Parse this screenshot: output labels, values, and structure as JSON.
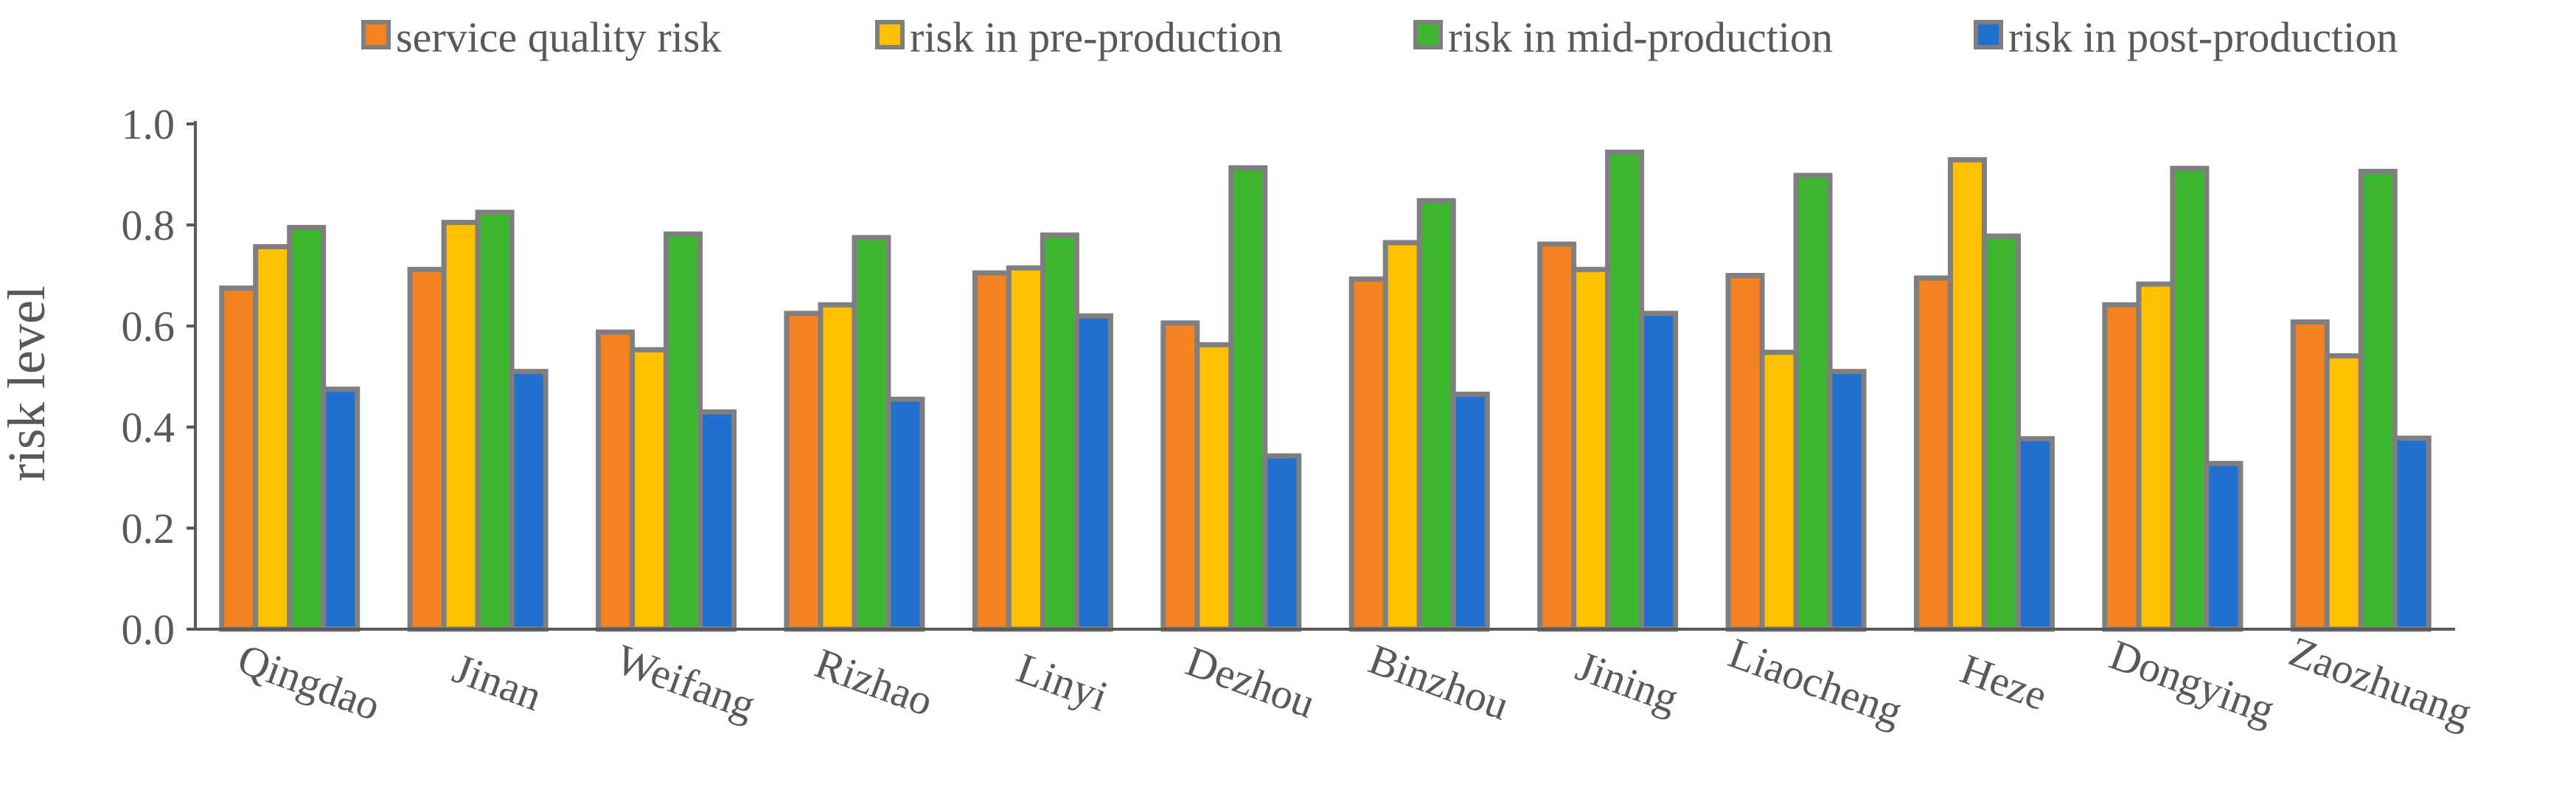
{
  "chart_data": {
    "type": "bar",
    "title": "",
    "xlabel": "",
    "ylabel": "risk level",
    "ylim": [
      0,
      1.0
    ],
    "yticks": [
      "0.0",
      "0.2",
      "0.4",
      "0.6",
      "0.8",
      "1.0"
    ],
    "ytick_values": [
      0,
      0.2,
      0.4,
      0.6,
      0.8,
      1.0
    ],
    "grid": false,
    "legend_position": "top",
    "categories": [
      "Qingdao",
      "Jinan",
      "Weifang",
      "Rizhao",
      "Linyi",
      "Dezhou",
      "Binzhou",
      "Jining",
      "Liaocheng",
      "Heze",
      "Dongying",
      "Zaozhuang"
    ],
    "series": [
      {
        "name": "service quality risk",
        "color": "#f58220",
        "values": [
          0.675,
          0.712,
          0.588,
          0.625,
          0.705,
          0.606,
          0.693,
          0.762,
          0.7,
          0.695,
          0.642,
          0.608
        ]
      },
      {
        "name": "risk in pre-production",
        "color": "#ffc000",
        "values": [
          0.757,
          0.805,
          0.553,
          0.642,
          0.715,
          0.563,
          0.765,
          0.712,
          0.548,
          0.929,
          0.683,
          0.541
        ]
      },
      {
        "name": "risk in mid-production",
        "color": "#3cb72f",
        "values": [
          0.795,
          0.825,
          0.782,
          0.775,
          0.78,
          0.913,
          0.848,
          0.944,
          0.898,
          0.778,
          0.912,
          0.906
        ]
      },
      {
        "name": "risk in post-production",
        "color": "#2170d0",
        "values": [
          0.475,
          0.51,
          0.43,
          0.455,
          0.62,
          0.343,
          0.465,
          0.625,
          0.51,
          0.377,
          0.328,
          0.378
        ]
      }
    ]
  }
}
